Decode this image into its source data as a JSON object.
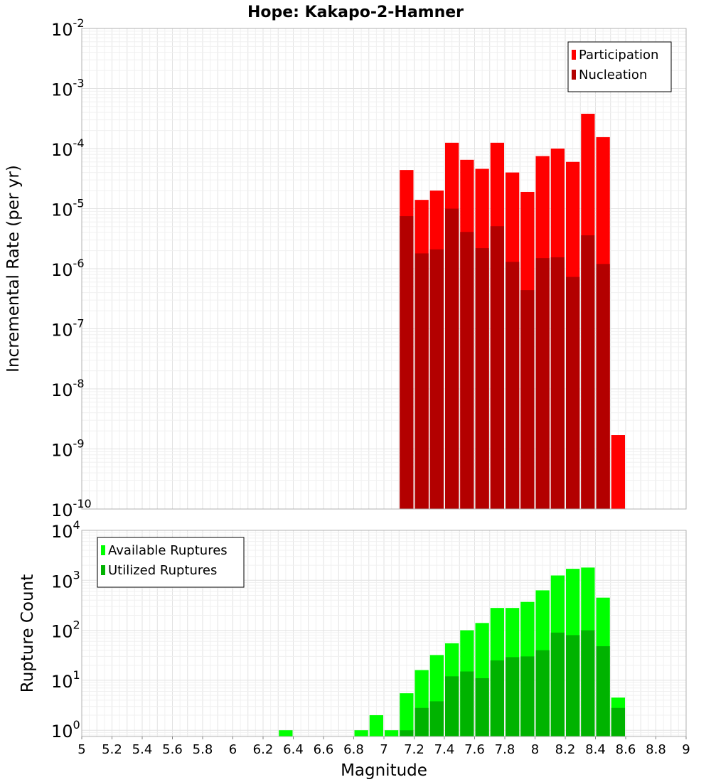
{
  "chart_data": [
    {
      "type": "bar",
      "title": "Hope: Kakapo-2-Hamner",
      "xlabel": "Magnitude",
      "ylabel": "Incremental Rate (per yr)",
      "yscale": "log",
      "ylim": [
        1e-10,
        0.01
      ],
      "xlim": [
        5,
        9
      ],
      "bin_width": 0.1,
      "grid": true,
      "legend_position": "top-right",
      "x": [
        7.15,
        7.25,
        7.35,
        7.45,
        7.55,
        7.65,
        7.75,
        7.85,
        7.95,
        8.05,
        8.15,
        8.25,
        8.35,
        8.45,
        8.55
      ],
      "series": [
        {
          "name": "Participation",
          "color": "#ff0000",
          "values": [
            4.4e-05,
            1.4e-05,
            2e-05,
            0.000125,
            6.5e-05,
            4.6e-05,
            0.000125,
            4e-05,
            1.9e-05,
            7.5e-05,
            0.0001,
            6e-05,
            0.00038,
            0.000155,
            1.7e-09
          ]
        },
        {
          "name": "Nucleation",
          "color": "#b30000",
          "values": [
            7.5e-06,
            1.8e-06,
            2.1e-06,
            1e-05,
            4.1e-06,
            2.2e-06,
            5.1e-06,
            1.3e-06,
            4.4e-07,
            1.5e-06,
            1.55e-06,
            7.3e-07,
            3.6e-06,
            1.2e-06,
            null
          ]
        }
      ]
    },
    {
      "type": "bar",
      "xlabel": "Magnitude",
      "ylabel": "Rupture Count",
      "yscale": "log",
      "ylim": [
        0.75,
        10000.0
      ],
      "xlim": [
        5,
        9
      ],
      "bin_width": 0.1,
      "grid": true,
      "legend_position": "top-left",
      "x": [
        6.35,
        6.85,
        6.95,
        7.05,
        7.15,
        7.25,
        7.35,
        7.45,
        7.55,
        7.65,
        7.75,
        7.85,
        7.95,
        8.05,
        8.15,
        8.25,
        8.35,
        8.45,
        8.55
      ],
      "series": [
        {
          "name": "Available Ruptures",
          "color": "#00ff00",
          "values": [
            1,
            1,
            2,
            1,
            5.5,
            16,
            32,
            55,
            100,
            140,
            280,
            280,
            370,
            630,
            1250,
            1700,
            1800,
            450,
            4.5
          ]
        },
        {
          "name": "Utilized Ruptures",
          "color": "#00b300",
          "values": [
            null,
            null,
            null,
            null,
            1,
            2.8,
            3.8,
            12,
            15,
            11,
            25,
            29,
            30,
            40,
            90,
            80,
            100,
            48,
            2.8
          ]
        }
      ]
    }
  ],
  "x_ticks": [
    "5",
    "5.2",
    "5.4",
    "5.6",
    "5.8",
    "6",
    "6.2",
    "6.4",
    "6.6",
    "6.8",
    "7",
    "7.2",
    "7.4",
    "7.6",
    "7.8",
    "8",
    "8.2",
    "8.4",
    "8.6",
    "8.8",
    "9"
  ],
  "top_y_ticks": [
    {
      "base": "10",
      "exp": "-10",
      "value": 1e-10
    },
    {
      "base": "10",
      "exp": "-9",
      "value": 1e-09
    },
    {
      "base": "10",
      "exp": "-8",
      "value": 1e-08
    },
    {
      "base": "10",
      "exp": "-7",
      "value": 1e-07
    },
    {
      "base": "10",
      "exp": "-6",
      "value": 1e-06
    },
    {
      "base": "10",
      "exp": "-5",
      "value": 1e-05
    },
    {
      "base": "10",
      "exp": "-4",
      "value": 0.0001
    },
    {
      "base": "10",
      "exp": "-3",
      "value": 0.001
    },
    {
      "base": "10",
      "exp": "-2",
      "value": 0.01
    }
  ],
  "bottom_y_ticks": [
    {
      "base": "10",
      "exp": "0",
      "value": 1
    },
    {
      "base": "10",
      "exp": "1",
      "value": 10
    },
    {
      "base": "10",
      "exp": "2",
      "value": 100
    },
    {
      "base": "10",
      "exp": "3",
      "value": 1000
    },
    {
      "base": "10",
      "exp": "4",
      "value": 10000
    }
  ],
  "colors": {
    "background": "#ffffff",
    "bar_gap": "#ffffff"
  }
}
